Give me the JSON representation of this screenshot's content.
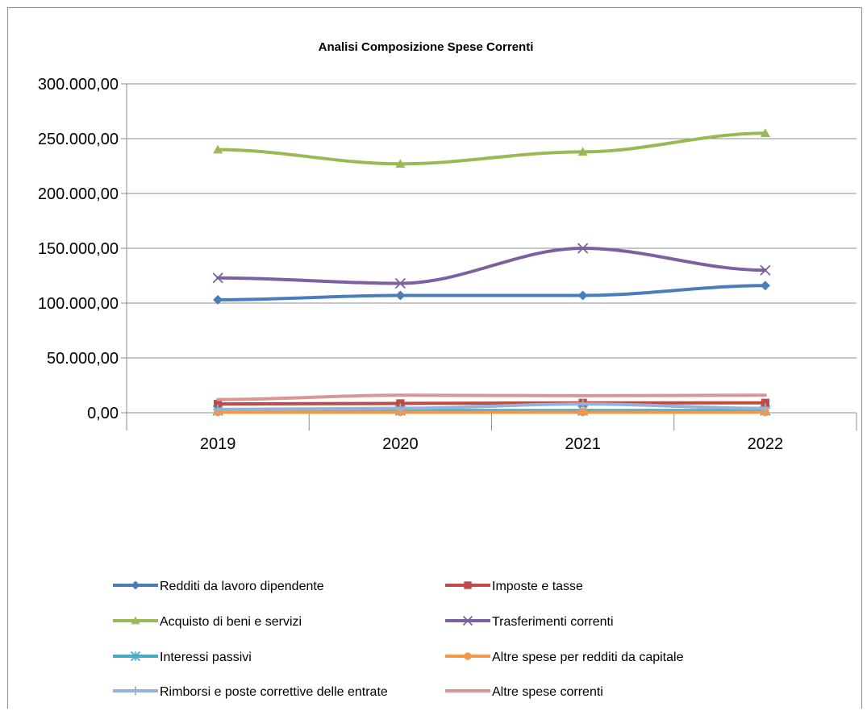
{
  "chart_data": {
    "type": "line",
    "title": "Analisi Composizione Spese Correnti",
    "xlabel": "",
    "ylabel": "",
    "categories": [
      "2019",
      "2020",
      "2021",
      "2022"
    ],
    "ylim": [
      0,
      300000
    ],
    "yticks": [
      0,
      50000,
      100000,
      150000,
      200000,
      250000,
      300000
    ],
    "ytick_labels": [
      "0,00",
      "50.000,00",
      "100.000,00",
      "150.000,00",
      "200.000,00",
      "250.000,00",
      "300.000,00"
    ],
    "grid": "horizontal",
    "legend_position": "bottom",
    "series": [
      {
        "name": "Redditi da lavoro dipendente",
        "values": [
          103000,
          107000,
          107000,
          116000
        ],
        "color": "#4a7ebb",
        "marker": "diamond"
      },
      {
        "name": "Imposte e tasse",
        "values": [
          8000,
          8500,
          9000,
          9000
        ],
        "color": "#be4b48",
        "marker": "square"
      },
      {
        "name": "Acquisto di beni e servizi",
        "values": [
          240000,
          227000,
          238000,
          255000
        ],
        "color": "#98b954",
        "marker": "triangle"
      },
      {
        "name": "Trasferimenti correnti",
        "values": [
          123000,
          118000,
          150000,
          130000
        ],
        "color": "#7d60a0",
        "marker": "x"
      },
      {
        "name": "Interessi passivi",
        "values": [
          2000,
          2000,
          2000,
          2000
        ],
        "color": "#46aac5",
        "marker": "star"
      },
      {
        "name": "Altre spese per redditi da capitale",
        "values": [
          500,
          500,
          500,
          500
        ],
        "color": "#f79646",
        "marker": "circle"
      },
      {
        "name": "Rimborsi e poste correttive delle entrate",
        "values": [
          3000,
          4000,
          8000,
          4000
        ],
        "color": "#95b3d7",
        "marker": "plus"
      },
      {
        "name": "Altre spese correnti",
        "values": [
          12000,
          16000,
          15500,
          16000
        ],
        "color": "#d99694",
        "marker": "none"
      }
    ]
  }
}
